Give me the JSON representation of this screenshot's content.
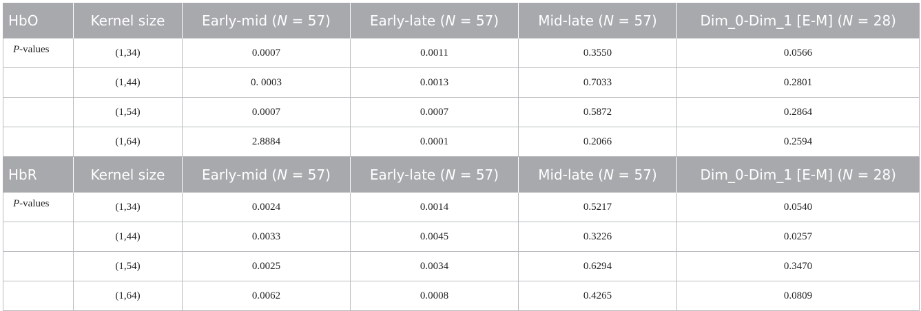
{
  "sections": [
    {
      "group": "HbO",
      "headers": {
        "kernel": "Kernel size",
        "early_mid": "Early-mid (",
        "early_late": "Early-late (",
        "mid_late": "Mid-late (",
        "dim": "Dim_0-Dim_1 [E-M] (",
        "n_symbol": "N",
        "n57": " = 57)",
        "n28": " = 28)"
      },
      "row_label_p": "P",
      "row_label_rest": "-values",
      "rows": [
        [
          "(1,34)",
          "0.0007",
          "0.0011",
          "0.3550",
          "0.0566"
        ],
        [
          "(1,44)",
          "0. 0003",
          "0.0013",
          "0.7033",
          "0.2801"
        ],
        [
          "(1,54)",
          "0.0007",
          "0.0007",
          "0.5872",
          "0.2864"
        ],
        [
          "(1,64)",
          "2.8884",
          "0.0001",
          "0.2066",
          "0.2594"
        ]
      ]
    },
    {
      "group": "HbR",
      "headers": {
        "kernel": "Kernel size",
        "early_mid": "Early-mid (",
        "early_late": "Early-late (",
        "mid_late": "Mid-late (",
        "dim": "Dim_0-Dim_1 [E-M] (",
        "n_symbol": "N",
        "n57": " = 57)",
        "n28": " = 28)"
      },
      "row_label_p": "P",
      "row_label_rest": "-values",
      "rows": [
        [
          "(1,34)",
          "0.0024",
          "0.0014",
          "0.5217",
          "0.0540"
        ],
        [
          "(1,44)",
          "0.0033",
          "0.0045",
          "0.3226",
          "0.0257"
        ],
        [
          "(1,54)",
          "0.0025",
          "0.0034",
          "0.6294",
          "0.3470"
        ],
        [
          "(1,64)",
          "0.0062",
          "0.0008",
          "0.4265",
          "0.0809"
        ]
      ]
    }
  ]
}
